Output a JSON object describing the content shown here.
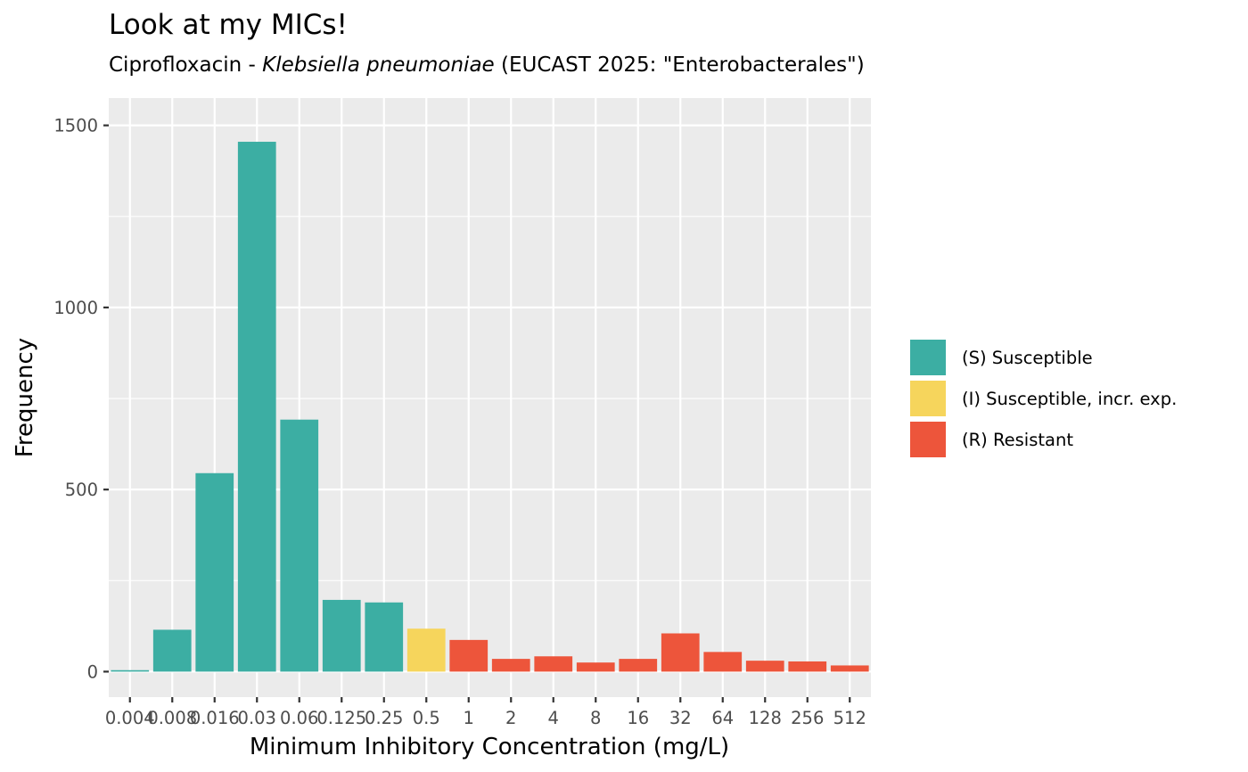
{
  "chart_data": {
    "type": "bar",
    "title": "Look at my MICs!",
    "subtitle": {
      "prefix": "Ciprofloxacin - ",
      "organism": "Klebsiella pneumoniae",
      "suffix": " (EUCAST 2025: \"Enterobacterales\")"
    },
    "xlabel": "Minimum Inhibitory Concentration (mg/L)",
    "ylabel": "Frequency",
    "ylim": [
      -70,
      1575
    ],
    "yticks": [
      0,
      500,
      1000,
      1500
    ],
    "grid": true,
    "legend_position": "right",
    "categories": [
      "0.004",
      "0.008",
      "0.016",
      "0.03",
      "0.06",
      "0.125",
      "0.25",
      "0.5",
      "1",
      "2",
      "4",
      "8",
      "16",
      "32",
      "64",
      "128",
      "256",
      "512"
    ],
    "values": [
      4,
      115,
      545,
      1455,
      692,
      197,
      190,
      118,
      87,
      35,
      42,
      25,
      35,
      105,
      54,
      30,
      28,
      17
    ],
    "classes": [
      "S",
      "S",
      "S",
      "S",
      "S",
      "S",
      "S",
      "I",
      "R",
      "R",
      "R",
      "R",
      "R",
      "R",
      "R",
      "R",
      "R",
      "R"
    ],
    "legend": [
      {
        "key": "S",
        "label": "(S) Susceptible",
        "color": "#3CAEA3"
      },
      {
        "key": "I",
        "label": "(I) Susceptible, incr. exp.",
        "color": "#F6D55C"
      },
      {
        "key": "R",
        "label": "(R) Resistant",
        "color": "#ED553B"
      }
    ],
    "panel_color": "#EBEBEB",
    "grid_color": "#FFFFFF"
  }
}
